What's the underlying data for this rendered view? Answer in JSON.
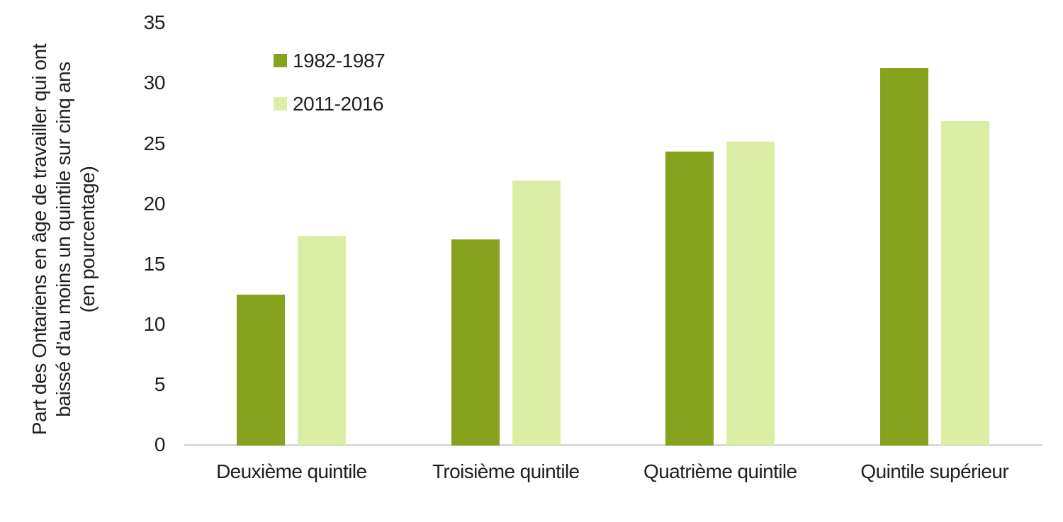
{
  "chart_data": {
    "type": "bar",
    "title": "",
    "categories": [
      "Deuxième quintile",
      "Troisième quintile",
      "Quatrième quintile",
      "Quintile supérieur"
    ],
    "series": [
      {
        "name": "1982-1987",
        "color": "#87A21D",
        "values": [
          12.5,
          17.1,
          24.4,
          31.3
        ]
      },
      {
        "name": "2011-2016",
        "color": "#DCEEA6",
        "values": [
          17.4,
          22.0,
          25.2,
          26.9
        ]
      }
    ],
    "ylabel_lines": [
      "Part des Ontariens en âge de travailler qui ont",
      "baissé d’au moins un quintile sur cinq ans",
      "(en pourcentage)"
    ],
    "xlabel": "",
    "yticks": [
      0,
      5,
      10,
      15,
      20,
      25,
      30,
      35
    ],
    "ylim": [
      0,
      35
    ],
    "grid": false,
    "legend_position": "top-left-inside",
    "axis_line_color": "#D9D9D9",
    "text_color": "#1F1F1F",
    "background": "#FFFFFF"
  }
}
